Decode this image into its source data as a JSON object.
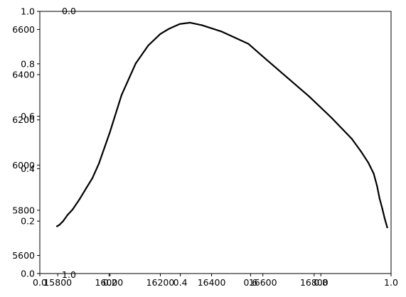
{
  "chart_data": {
    "type": "line",
    "title": "",
    "xlabel": "",
    "ylabel": "",
    "grid": false,
    "legend": "none",
    "overlay_axes": {
      "x_ticks": [
        "0.0",
        "0.2",
        "0.4",
        "0.6",
        "0.8",
        "1.0"
      ],
      "y_ticks": [
        "0.0",
        "0.2",
        "0.4",
        "0.6",
        "0.8",
        "1.0"
      ],
      "stray_labels": [
        "0.0",
        "1.0"
      ]
    },
    "axes": {
      "x_ticks": [
        "15800",
        "16000",
        "16200",
        "16400",
        "16600",
        "16800"
      ],
      "x_tick_values": [
        15800,
        16000,
        16200,
        16400,
        16600,
        16800
      ],
      "xlim": [
        15730,
        17100
      ],
      "y_ticks": [
        "5600",
        "5800",
        "6000",
        "6200",
        "6400",
        "6600"
      ],
      "y_tick_values": [
        5600,
        5800,
        6000,
        6200,
        6400,
        6600
      ],
      "ylim": [
        5520,
        6680
      ]
    },
    "series": [
      {
        "color": "#000000",
        "x": [
          15797,
          15806,
          15821,
          15838,
          15858,
          15886,
          15911,
          15935,
          15960,
          16003,
          16049,
          16104,
          16153,
          16200,
          16234,
          16276,
          16316,
          16362,
          16438,
          16544,
          16596,
          16695,
          16780,
          16867,
          16947,
          16982,
          17011,
          17032,
          17045,
          17055,
          17066,
          17075,
          17085
        ],
        "y": [
          5729,
          5735,
          5752,
          5779,
          5804,
          5851,
          5898,
          5942,
          6005,
          6144,
          6310,
          6450,
          6529,
          6580,
          6603,
          6624,
          6630,
          6619,
          6591,
          6536,
          6484,
          6387,
          6304,
          6210,
          6116,
          6061,
          6011,
          5963,
          5909,
          5853,
          5807,
          5764,
          5724
        ]
      }
    ]
  }
}
